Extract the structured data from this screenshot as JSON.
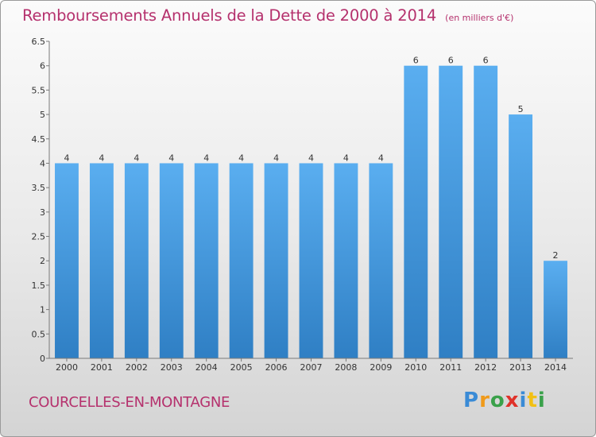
{
  "chart_data": {
    "type": "bar",
    "title": "Remboursements Annuels de la Dette de 2000 à 2014",
    "subtitle": "(en milliers d'€)",
    "categories": [
      "2000",
      "2001",
      "2002",
      "2003",
      "2004",
      "2005",
      "2006",
      "2007",
      "2008",
      "2009",
      "2010",
      "2011",
      "2012",
      "2013",
      "2014"
    ],
    "values": [
      4,
      4,
      4,
      4,
      4,
      4,
      4,
      4,
      4,
      4,
      6,
      6,
      6,
      5,
      2
    ],
    "ylim": [
      0,
      6.5
    ],
    "yticks": [
      "0",
      "0.5",
      "1",
      "1.5",
      "2",
      "2.5",
      "3",
      "3.5",
      "4",
      "4.5",
      "5",
      "5.5",
      "6",
      "6.5"
    ],
    "grid": false,
    "bar_color": "#4d9fe0"
  },
  "footer": {
    "commune": "COURCELLES-EN-MONTAGNE",
    "logo": [
      "P",
      "r",
      "o",
      "x",
      "i",
      "t",
      "i"
    ]
  }
}
